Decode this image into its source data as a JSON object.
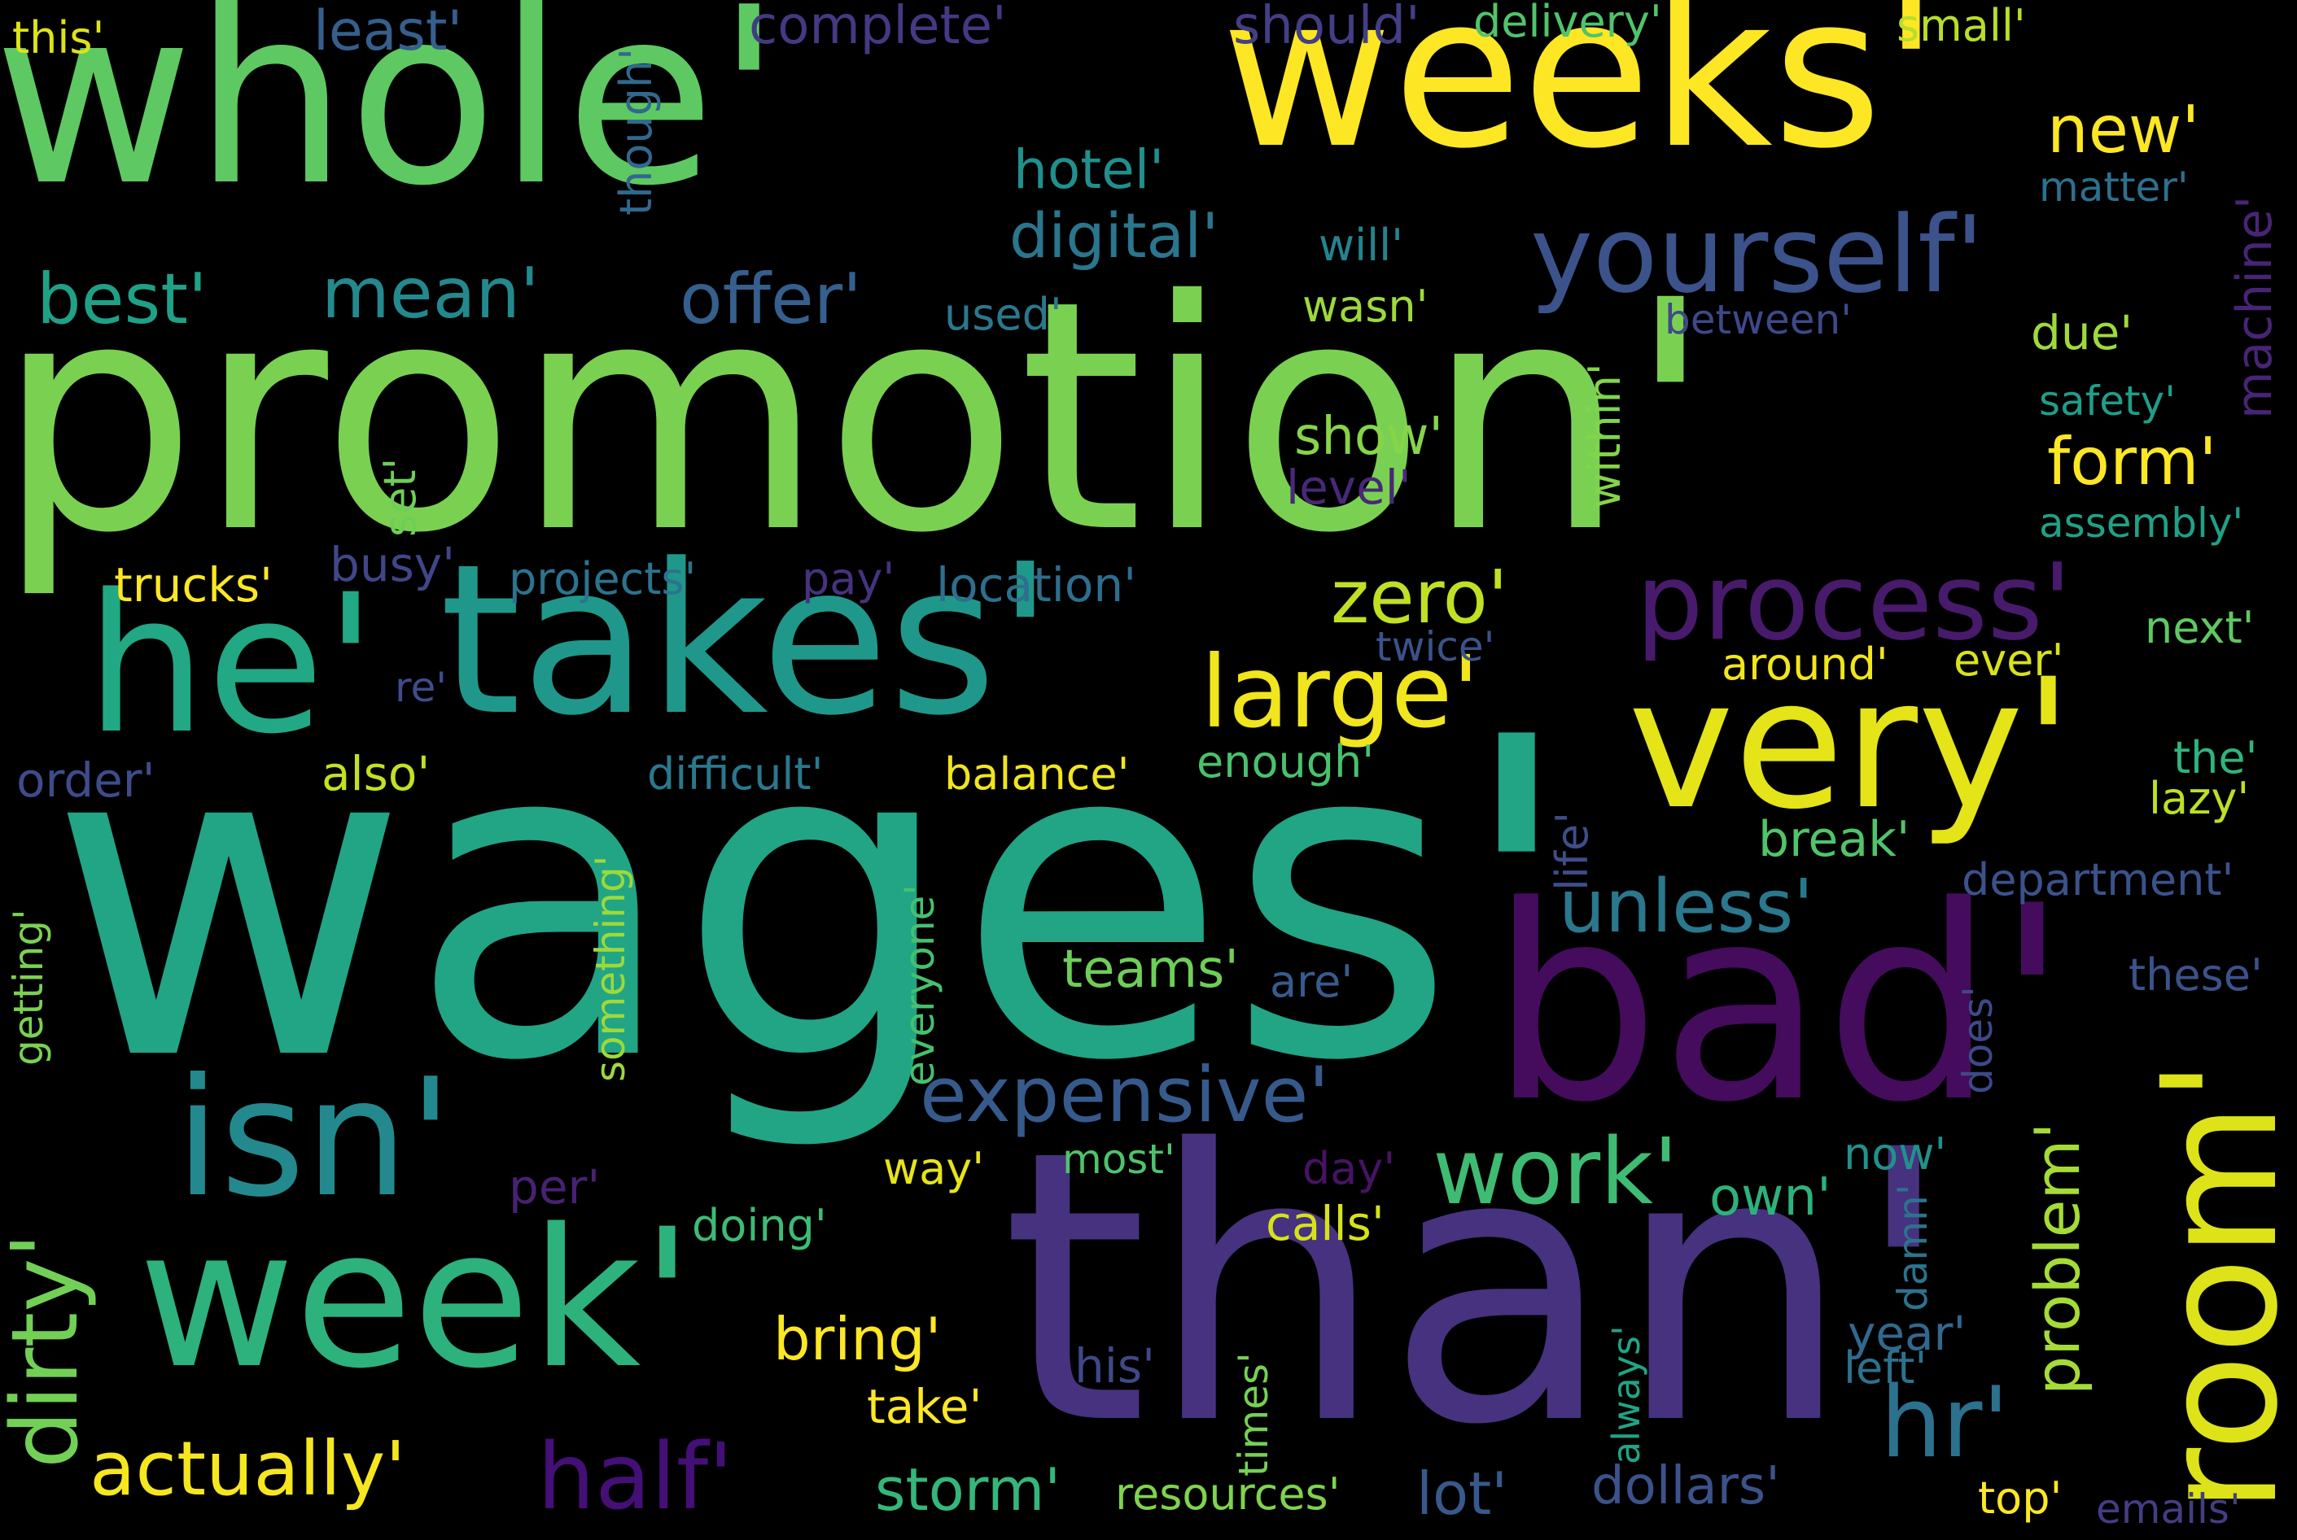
{
  "colors": {
    "background": "#000000",
    "palette": [
      "#fde725",
      "#b5de2b",
      "#6ece58",
      "#35b779",
      "#1f9e89",
      "#26828e",
      "#31688e",
      "#3e4989",
      "#482878",
      "#440154"
    ]
  },
  "words": [
    {
      "text": "whole'",
      "color": "#5ec962"
    },
    {
      "text": "weeks'",
      "color": "#fde725"
    },
    {
      "text": "promotion'",
      "color": "#7ad151"
    },
    {
      "text": "wages'",
      "color": "#21a585"
    },
    {
      "text": "than'",
      "color": "#46327e"
    },
    {
      "text": "he'",
      "color": "#22a884"
    },
    {
      "text": "takes'",
      "color": "#1f988b"
    },
    {
      "text": "very'",
      "color": "#e5e419"
    },
    {
      "text": "bad'",
      "color": "#450b5c"
    },
    {
      "text": "room'",
      "color": "#dde318"
    },
    {
      "text": "week'",
      "color": "#2db27d"
    },
    {
      "text": "isn'",
      "color": "#23898e"
    },
    {
      "text": "yourself'",
      "color": "#3b528b"
    },
    {
      "text": "process'",
      "color": "#481a6c"
    },
    {
      "text": "large'",
      "color": "#f1e51d"
    },
    {
      "text": "zero'",
      "color": "#c2df23"
    },
    {
      "text": "work'",
      "color": "#3fbc73"
    },
    {
      "text": "expensive'",
      "color": "#375a8c"
    },
    {
      "text": "unless'",
      "color": "#2a788e"
    },
    {
      "text": "half'",
      "color": "#440f76"
    },
    {
      "text": "actually'",
      "color": "#f6e620"
    },
    {
      "text": "dirty'",
      "color": "#73d056"
    },
    {
      "text": "hr'",
      "color": "#2c718e"
    },
    {
      "text": "problem'",
      "color": "#a5db36"
    },
    {
      "text": "form'",
      "color": "#fde725"
    },
    {
      "text": "new'",
      "color": "#fde725"
    },
    {
      "text": "best'",
      "color": "#1fa187"
    },
    {
      "text": "mean'",
      "color": "#23898e"
    },
    {
      "text": "offer'",
      "color": "#355f8d"
    },
    {
      "text": "digital'",
      "color": "#2a768e"
    },
    {
      "text": "hotel'",
      "color": "#218f8d"
    },
    {
      "text": "least'",
      "color": "#355f8d"
    },
    {
      "text": "complete'",
      "color": "#443983"
    },
    {
      "text": "should'",
      "color": "#433e85"
    },
    {
      "text": "delivery'",
      "color": "#50c46a"
    },
    {
      "text": "small'",
      "color": "#b8de29"
    },
    {
      "text": "this'",
      "color": "#dde318"
    },
    {
      "text": "though'",
      "color": "#31688e"
    },
    {
      "text": "matter'",
      "color": "#2d708e"
    },
    {
      "text": "machine'",
      "color": "#482475"
    },
    {
      "text": "will'",
      "color": "#25848e"
    },
    {
      "text": "wasn'",
      "color": "#9dd93b"
    },
    {
      "text": "used'",
      "color": "#2a788e"
    },
    {
      "text": "between'",
      "color": "#3e4989"
    },
    {
      "text": "due'",
      "color": "#9fda3a"
    },
    {
      "text": "safety'",
      "color": "#1f9e89"
    },
    {
      "text": "show'",
      "color": "#86d549"
    },
    {
      "text": "level'",
      "color": "#482878"
    },
    {
      "text": "within'",
      "color": "#84d44b"
    },
    {
      "text": "set'",
      "color": "#6ece58"
    },
    {
      "text": "assembly'",
      "color": "#1fa187"
    },
    {
      "text": "trucks'",
      "color": "#fde725"
    },
    {
      "text": "busy'",
      "color": "#404688"
    },
    {
      "text": "projects'",
      "color": "#2c738e"
    },
    {
      "text": "pay'",
      "color": "#46337e"
    },
    {
      "text": "location'",
      "color": "#2e6e8e"
    },
    {
      "text": "twice'",
      "color": "#3b528b"
    },
    {
      "text": "next'",
      "color": "#5ec962"
    },
    {
      "text": "around'",
      "color": "#f1e51d"
    },
    {
      "text": "ever'",
      "color": "#d8e219"
    },
    {
      "text": "re'",
      "color": "#3e4c8a"
    },
    {
      "text": "order'",
      "color": "#3e4c8a"
    },
    {
      "text": "also'",
      "color": "#c5e021"
    },
    {
      "text": "difficult'",
      "color": "#2a788e"
    },
    {
      "text": "balance'",
      "color": "#f1e51d"
    },
    {
      "text": "enough'",
      "color": "#4ac16d"
    },
    {
      "text": "life'",
      "color": "#3d4e8a"
    },
    {
      "text": "the'",
      "color": "#2fb47c"
    },
    {
      "text": "lazy'",
      "color": "#bddf26"
    },
    {
      "text": "break'",
      "color": "#50c46a"
    },
    {
      "text": "department'",
      "color": "#3b528b"
    },
    {
      "text": "getting'",
      "color": "#7ad151"
    },
    {
      "text": "something'",
      "color": "#9dd93b"
    },
    {
      "text": "everyone'",
      "color": "#46c06f"
    },
    {
      "text": "teams'",
      "color": "#6ece58"
    },
    {
      "text": "are'",
      "color": "#365c8d"
    },
    {
      "text": "these'",
      "color": "#3b528b"
    },
    {
      "text": "does'",
      "color": "#3e4989"
    },
    {
      "text": "way'",
      "color": "#e7e419"
    },
    {
      "text": "most'",
      "color": "#4ec36b"
    },
    {
      "text": "day'",
      "color": "#471365"
    },
    {
      "text": "now'",
      "color": "#21918c"
    },
    {
      "text": "per'",
      "color": "#482173"
    },
    {
      "text": "doing'",
      "color": "#3dbc74"
    },
    {
      "text": "calls'",
      "color": "#d5e21a"
    },
    {
      "text": "own'",
      "color": "#2db27d"
    },
    {
      "text": "damn'",
      "color": "#2c738e"
    },
    {
      "text": "bring'",
      "color": "#fde725"
    },
    {
      "text": "his'",
      "color": "#3f4889"
    },
    {
      "text": "take'",
      "color": "#fde725"
    },
    {
      "text": "times'",
      "color": "#75d054"
    },
    {
      "text": "always'",
      "color": "#20a486"
    },
    {
      "text": "year'",
      "color": "#31688e"
    },
    {
      "text": "left'",
      "color": "#2c728e"
    },
    {
      "text": "storm'",
      "color": "#35b779"
    },
    {
      "text": "resources'",
      "color": "#7fd34e"
    },
    {
      "text": "lot'",
      "color": "#38598c"
    },
    {
      "text": "dollars'",
      "color": "#3b528b"
    },
    {
      "text": "top'",
      "color": "#fde725"
    },
    {
      "text": "emails'",
      "color": "#433d84"
    }
  ]
}
